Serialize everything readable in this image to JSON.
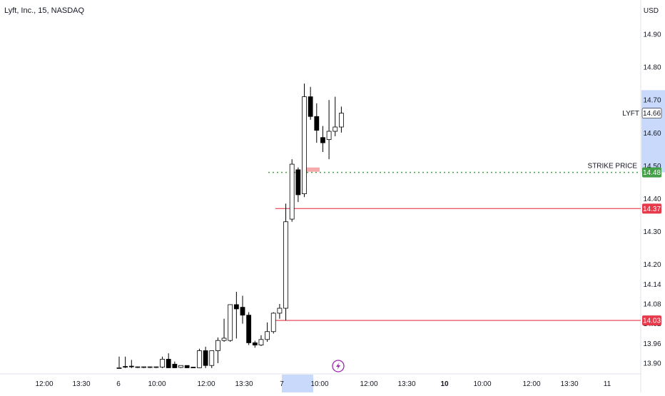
{
  "header": {
    "symbol_label": "Lyft, Inc., 15, NASDAQ",
    "currency": "USD"
  },
  "colors": {
    "candle_up_fill": "#ffffff",
    "candle_down_fill": "#000000",
    "candle_border": "#000000",
    "support_line": "#e8394b",
    "strike_line": "#43a047",
    "highlight_zone": "#f6a9ab",
    "axis_highlight": "#c9d9fb",
    "lightning": "#9c27b0"
  },
  "chart_data": {
    "type": "candlestick",
    "symbol": "LYFT",
    "last_price": "14.66",
    "y_ticks": [
      14.9,
      14.8,
      14.7,
      14.6,
      14.5,
      14.4,
      14.3,
      14.2,
      14.14,
      14.08,
      14.02,
      13.96,
      13.9
    ],
    "y_tick_labels": [
      "14.90",
      "14.80",
      "14.70",
      "14.60",
      "14.50",
      "14.40",
      "14.30",
      "14.20",
      "14.14",
      "14.08",
      "14.02",
      "13.96",
      "13.90"
    ],
    "ylim": [
      13.87,
      14.97
    ],
    "x_ticks": [
      {
        "label": "12:00",
        "bold": false
      },
      {
        "label": "13:30",
        "bold": false
      },
      {
        "label": "6",
        "bold": false
      },
      {
        "label": "10:00",
        "bold": false
      },
      {
        "label": "12:00",
        "bold": false
      },
      {
        "label": "13:30",
        "bold": false
      },
      {
        "label": "7",
        "bold": false
      },
      {
        "label": "10:00",
        "bold": false
      },
      {
        "label": "12:00",
        "bold": false
      },
      {
        "label": "13:30",
        "bold": false
      },
      {
        "label": "10",
        "bold": true
      },
      {
        "label": "10:00",
        "bold": false
      },
      {
        "label": "12:00",
        "bold": false
      },
      {
        "label": "13:30",
        "bold": false
      },
      {
        "label": "11",
        "bold": false
      }
    ],
    "candles": [
      {
        "o": 13.886,
        "h": 13.92,
        "l": 13.885,
        "c": 13.886
      },
      {
        "o": 13.89,
        "h": 13.92,
        "l": 13.885,
        "c": 13.888
      },
      {
        "o": 13.891,
        "h": 13.91,
        "l": 13.885,
        "c": 13.889
      },
      {
        "o": 13.889,
        "h": 13.89,
        "l": 13.885,
        "c": 13.889
      },
      {
        "o": 13.889,
        "h": 13.89,
        "l": 13.885,
        "c": 13.889
      },
      {
        "o": 13.889,
        "h": 13.89,
        "l": 13.885,
        "c": 13.889
      },
      {
        "o": 13.889,
        "h": 13.89,
        "l": 13.885,
        "c": 13.889
      },
      {
        "o": 13.888,
        "h": 13.92,
        "l": 13.885,
        "c": 13.912
      },
      {
        "o": 13.912,
        "h": 13.93,
        "l": 13.885,
        "c": 13.886
      },
      {
        "o": 13.897,
        "h": 13.905,
        "l": 13.885,
        "c": 13.886
      },
      {
        "o": 13.887,
        "h": 13.89,
        "l": 13.885,
        "c": 13.893
      },
      {
        "o": 13.893,
        "h": 13.893,
        "l": 13.885,
        "c": 13.886
      },
      {
        "o": 13.888,
        "h": 13.888,
        "l": 13.885,
        "c": 13.886
      },
      {
        "o": 13.886,
        "h": 13.944,
        "l": 13.885,
        "c": 13.938
      },
      {
        "o": 13.938,
        "h": 13.95,
        "l": 13.885,
        "c": 13.893
      },
      {
        "o": 13.893,
        "h": 13.93,
        "l": 13.885,
        "c": 13.938
      },
      {
        "o": 13.938,
        "h": 13.978,
        "l": 13.9,
        "c": 13.969
      },
      {
        "o": 13.969,
        "h": 14.035,
        "l": 13.965,
        "c": 13.976
      },
      {
        "o": 13.969,
        "h": 14.07,
        "l": 13.965,
        "c": 14.078
      },
      {
        "o": 14.078,
        "h": 14.117,
        "l": 13.975,
        "c": 14.065
      },
      {
        "o": 14.07,
        "h": 14.105,
        "l": 14.02,
        "c": 14.046
      },
      {
        "o": 14.046,
        "h": 14.055,
        "l": 13.955,
        "c": 13.962
      },
      {
        "o": 13.962,
        "h": 13.968,
        "l": 13.947,
        "c": 13.955
      },
      {
        "o": 13.955,
        "h": 13.985,
        "l": 13.952,
        "c": 13.972
      },
      {
        "o": 13.972,
        "h": 14.024,
        "l": 13.965,
        "c": 13.996
      },
      {
        "o": 13.996,
        "h": 14.055,
        "l": 13.99,
        "c": 14.052
      },
      {
        "o": 14.052,
        "h": 14.08,
        "l": 14.035,
        "c": 14.067
      },
      {
        "o": 14.067,
        "h": 14.385,
        "l": 14.03,
        "c": 14.33
      },
      {
        "o": 14.338,
        "h": 14.52,
        "l": 14.33,
        "c": 14.505
      },
      {
        "o": 14.488,
        "h": 14.495,
        "l": 14.39,
        "c": 14.412
      },
      {
        "o": 14.415,
        "h": 14.75,
        "l": 14.405,
        "c": 14.71
      },
      {
        "o": 14.71,
        "h": 14.74,
        "l": 14.64,
        "c": 14.65
      },
      {
        "o": 14.65,
        "h": 14.69,
        "l": 14.57,
        "c": 14.608
      },
      {
        "o": 14.586,
        "h": 14.621,
        "l": 14.542,
        "c": 14.57
      },
      {
        "o": 14.58,
        "h": 14.7,
        "l": 14.52,
        "c": 14.605
      },
      {
        "o": 14.605,
        "h": 14.71,
        "l": 14.59,
        "c": 14.618
      },
      {
        "o": 14.618,
        "h": 14.68,
        "l": 14.601,
        "c": 14.66
      }
    ],
    "levels": [
      {
        "label": "STRIKE PRICE",
        "value": 14.48,
        "value_label": "14.48",
        "style": "dotted",
        "color": "#43a047"
      },
      {
        "value": 14.37,
        "value_label": "14.37",
        "style": "solid",
        "color": "#e8394b"
      },
      {
        "value": 14.03,
        "value_label": "14.03",
        "style": "solid",
        "color": "#e8394b"
      }
    ]
  }
}
